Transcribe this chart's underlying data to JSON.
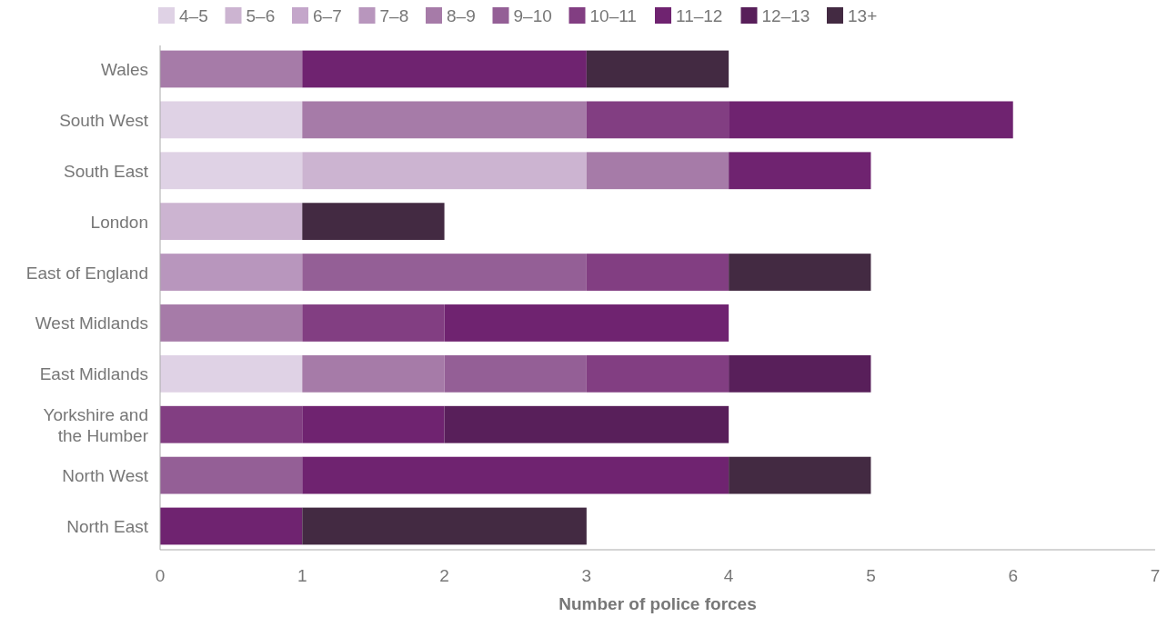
{
  "chart_data": {
    "type": "bar",
    "orientation": "horizontal",
    "stacked": true,
    "xlabel": "Number of police forces",
    "categories": [
      "Wales",
      "South West",
      "South East",
      "London",
      "East of England",
      "West Midlands",
      "East Midlands",
      "Yorkshire and the Humber",
      "North West",
      "North East"
    ],
    "series": [
      {
        "name": "4–5",
        "color": "#dfd2e5",
        "values": [
          null,
          1,
          1,
          null,
          null,
          null,
          1,
          null,
          null,
          null
        ]
      },
      {
        "name": "5–6",
        "color": "#ccb4d1",
        "values": [
          null,
          null,
          2,
          1,
          null,
          null,
          null,
          null,
          null,
          null
        ]
      },
      {
        "name": "6–7",
        "color": "#c4a6ca",
        "values": [
          null,
          null,
          null,
          null,
          null,
          null,
          null,
          null,
          null,
          null
        ]
      },
      {
        "name": "7–8",
        "color": "#b896bd",
        "values": [
          null,
          null,
          null,
          null,
          1,
          null,
          null,
          null,
          null,
          null
        ]
      },
      {
        "name": "8–9",
        "color": "#a67ba8",
        "values": [
          1,
          2,
          1,
          null,
          null,
          1,
          1,
          null,
          null,
          null
        ]
      },
      {
        "name": "9–10",
        "color": "#945f96",
        "values": [
          null,
          null,
          null,
          null,
          2,
          null,
          1,
          null,
          1,
          null
        ]
      },
      {
        "name": "10–11",
        "color": "#823e82",
        "values": [
          null,
          1,
          null,
          null,
          1,
          1,
          1,
          1,
          null,
          null
        ]
      },
      {
        "name": "11–12",
        "color": "#6f2370",
        "values": [
          2,
          2,
          1,
          null,
          null,
          2,
          null,
          1,
          3,
          1
        ]
      },
      {
        "name": "12–13",
        "color": "#581f5a",
        "values": [
          null,
          null,
          null,
          null,
          null,
          null,
          1,
          2,
          null,
          null
        ]
      },
      {
        "name": "13+",
        "color": "#432a42",
        "values": [
          1,
          null,
          null,
          1,
          1,
          null,
          null,
          null,
          1,
          2
        ]
      }
    ],
    "xlim": [
      0,
      7
    ],
    "xticks": [
      0,
      1,
      2,
      3,
      4,
      5,
      6,
      7
    ],
    "grid": false,
    "legend": "top left"
  }
}
